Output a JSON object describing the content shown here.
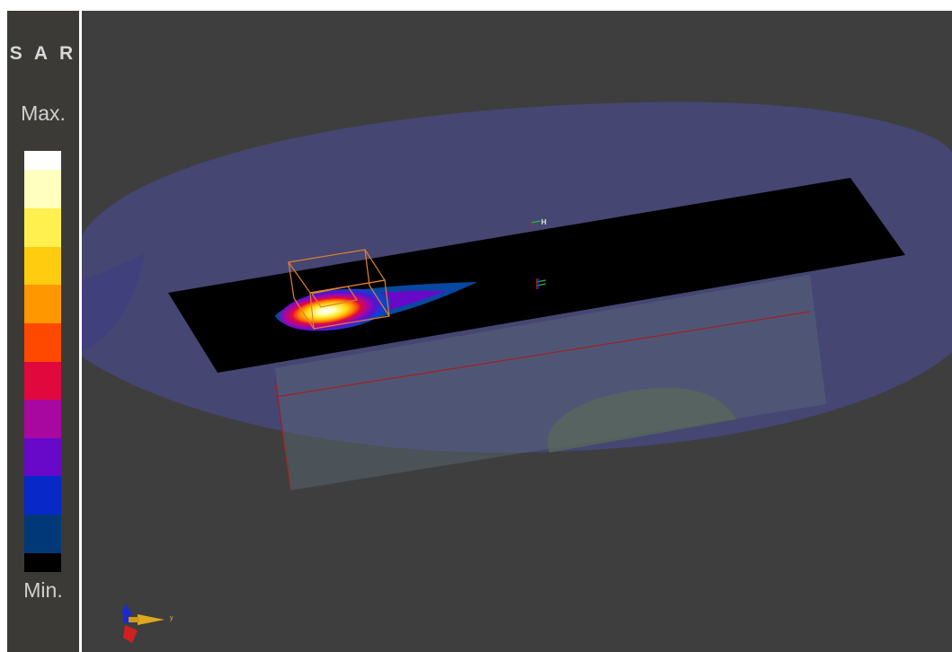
{
  "legend": {
    "title": "S A R",
    "max_label": "Max.",
    "min_label": "Min.",
    "colors": [
      "#ffffff",
      "#ffffc0",
      "#fff050",
      "#ffcc10",
      "#ff9800",
      "#ff4800",
      "#e0083c",
      "#a808a0",
      "#6808c8",
      "#0828c8",
      "#003878",
      "#000000"
    ]
  },
  "scene": {
    "background": "#3e3e3e",
    "phantom_color": "#4a4a8a",
    "plane_color": "#000000",
    "probe_box_color": "#e08030",
    "axis_marker_label": "H",
    "orientation_axis_label": "y"
  }
}
